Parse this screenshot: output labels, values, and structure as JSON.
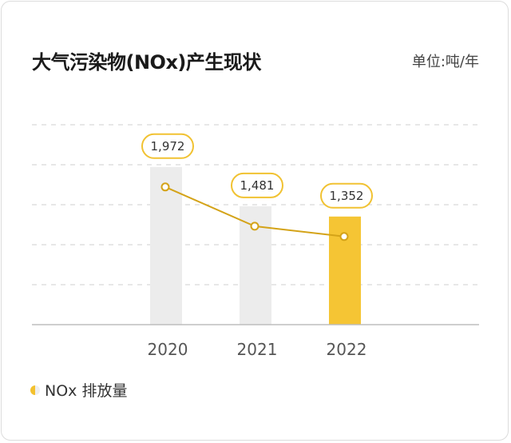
{
  "header": {
    "title": "大气污染物(NOx)产生现状",
    "unit": "单位:吨/年"
  },
  "legend": {
    "label": "NOx 排放量"
  },
  "colors": {
    "bar_default": "#ececec",
    "bar_highlight": "#f5c534",
    "line": "#d4a318",
    "label_border": "#f1c232",
    "grid": "#cfcfcf",
    "axis": "#bdbdbd"
  },
  "chart_data": {
    "type": "bar",
    "categories": [
      "2020",
      "2021",
      "2022"
    ],
    "series": [
      {
        "name": "NOx 排放量",
        "values": [
          1972,
          1481,
          1352
        ]
      }
    ],
    "data_labels": [
      "1,972",
      "1,481",
      "1,352"
    ],
    "overlay": "line",
    "highlight_index": 2,
    "ylim": [
      0,
      2500
    ],
    "grid": true,
    "legend_position": "bottom-left",
    "title": "大气污染物(NOx)产生现状",
    "xlabel": "",
    "ylabel": ""
  }
}
